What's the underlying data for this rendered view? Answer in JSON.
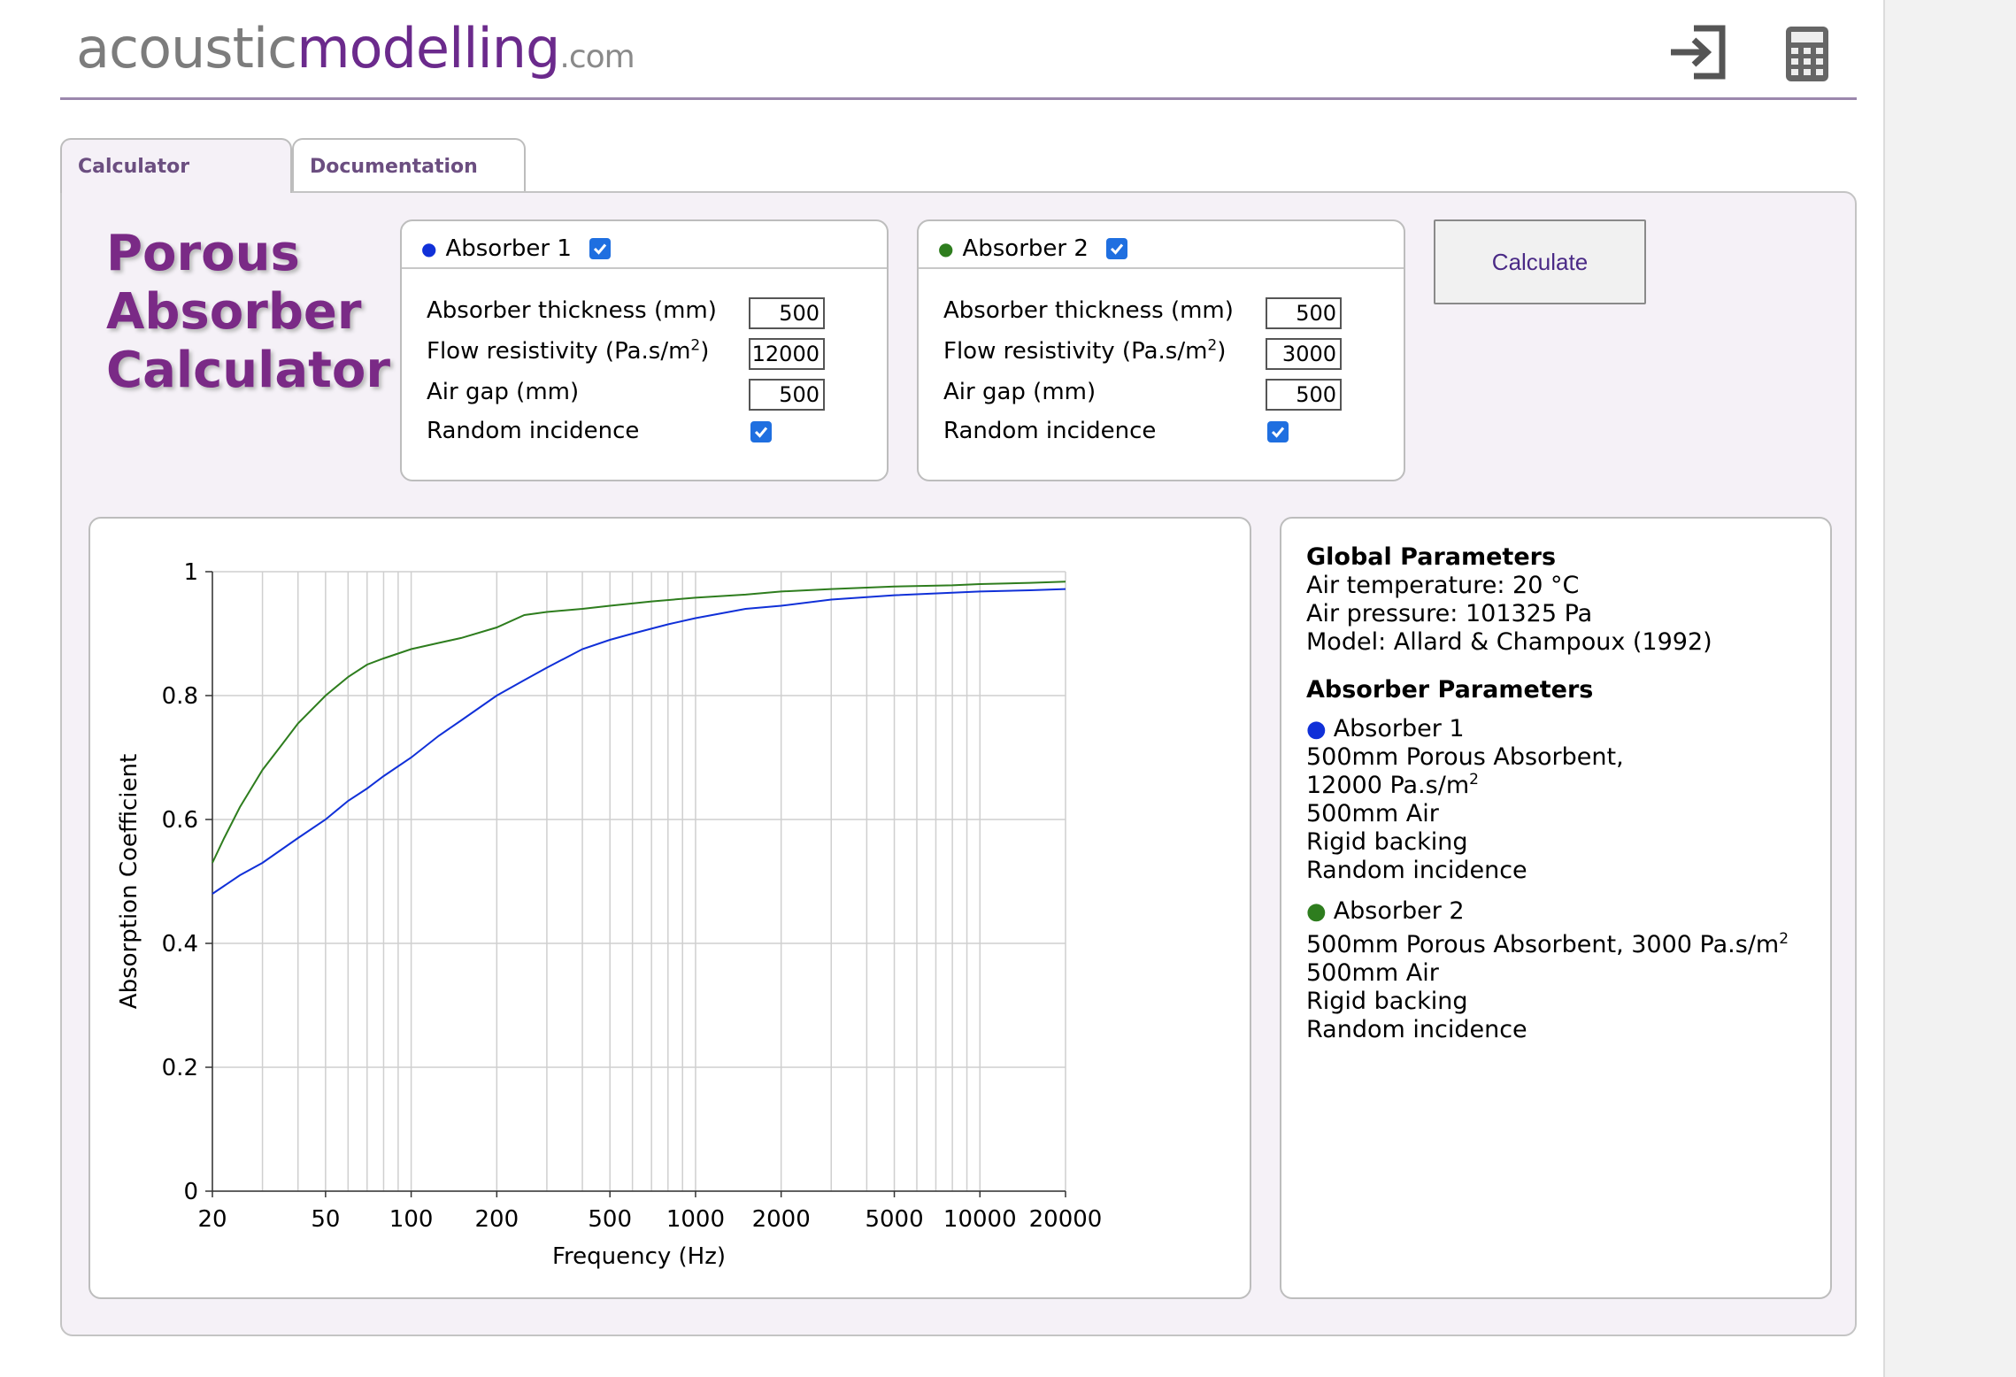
{
  "header": {
    "logo_part1": "acoustic",
    "logo_part2": "modelling",
    "logo_part3": ".com"
  },
  "tabs": [
    {
      "label": "Calculator",
      "active": true
    },
    {
      "label": "Documentation",
      "active": false
    }
  ],
  "title": {
    "line1": "Porous",
    "line2": "Absorber",
    "line3": "Calculator"
  },
  "absorber1": {
    "name": "Absorber 1",
    "color": "#1030d8",
    "enabled": true,
    "thickness_label": "Absorber thickness (mm)",
    "thickness": "500",
    "flow_label_prefix": "Flow resistivity (Pa.s/m",
    "flow_label_sup": "2",
    "flow_label_suffix": ")",
    "flow": "12000",
    "airgap_label": "Air gap (mm)",
    "airgap": "500",
    "random_label": "Random incidence",
    "random": true
  },
  "absorber2": {
    "name": "Absorber 2",
    "color": "#2e7d1e",
    "enabled": true,
    "thickness_label": "Absorber thickness (mm)",
    "thickness": "500",
    "flow_label_prefix": "Flow resistivity (Pa.s/m",
    "flow_label_sup": "2",
    "flow_label_suffix": ")",
    "flow": "3000",
    "airgap_label": "Air gap (mm)",
    "airgap": "500",
    "random_label": "Random incidence",
    "random": true
  },
  "calculate_label": "Calculate",
  "params": {
    "global_heading": "Global Parameters",
    "air_temp": "Air temperature: 20 °C",
    "air_pressure": "Air pressure: 101325 Pa",
    "model": "Model: Allard & Champoux (1992)",
    "absorber_heading": "Absorber Parameters",
    "abs1_name": "Absorber 1",
    "abs1_line1": "500mm Porous Absorbent,",
    "abs1_line2_prefix": "12000 Pa.s/m",
    "abs1_line2_sup": "2",
    "abs1_line3": "500mm Air",
    "abs1_line4": "Rigid backing",
    "abs1_line5": "Random incidence",
    "abs2_name": "Absorber 2",
    "abs2_line1_prefix": "500mm Porous Absorbent, 3000 Pa.s/m",
    "abs2_line1_sup": "2",
    "abs2_line2": "500mm Air",
    "abs2_line3": "Rigid backing",
    "abs2_line4": "Random incidence"
  },
  "chart_data": {
    "type": "line",
    "xlabel": "Frequency (Hz)",
    "ylabel": "Absorption Coefficient",
    "xscale": "log",
    "xlim": [
      20,
      20000
    ],
    "ylim": [
      0,
      1
    ],
    "x_ticks": [
      20,
      50,
      100,
      200,
      500,
      1000,
      2000,
      5000,
      10000,
      20000
    ],
    "x_tick_labels": [
      "20",
      "50",
      "100",
      "200",
      "500",
      "1000",
      "2000",
      "5000",
      "10000",
      "20000"
    ],
    "y_ticks": [
      0,
      0.2,
      0.4,
      0.6,
      0.8,
      1
    ],
    "y_tick_labels": [
      "0",
      "0.2",
      "0.4",
      "0.6",
      "0.8",
      "1"
    ],
    "grid": true,
    "series": [
      {
        "name": "Absorber 1",
        "color": "#1030d8",
        "x": [
          20,
          25,
          30,
          40,
          50,
          60,
          70,
          80,
          100,
          125,
          150,
          200,
          250,
          300,
          400,
          500,
          600,
          800,
          1000,
          1500,
          2000,
          3000,
          5000,
          8000,
          10000,
          15000,
          20000
        ],
        "y": [
          0.48,
          0.51,
          0.53,
          0.57,
          0.6,
          0.63,
          0.65,
          0.67,
          0.7,
          0.735,
          0.76,
          0.8,
          0.825,
          0.845,
          0.875,
          0.89,
          0.9,
          0.915,
          0.925,
          0.94,
          0.945,
          0.955,
          0.962,
          0.966,
          0.968,
          0.97,
          0.972
        ]
      },
      {
        "name": "Absorber 2",
        "color": "#2e7d1e",
        "x": [
          20,
          22,
          25,
          30,
          35,
          40,
          50,
          60,
          70,
          80,
          100,
          125,
          150,
          200,
          250,
          300,
          400,
          500,
          700,
          1000,
          1500,
          2000,
          3000,
          5000,
          8000,
          10000,
          15000,
          20000
        ],
        "y": [
          0.53,
          0.57,
          0.62,
          0.68,
          0.72,
          0.755,
          0.8,
          0.83,
          0.85,
          0.86,
          0.875,
          0.885,
          0.893,
          0.91,
          0.93,
          0.935,
          0.94,
          0.945,
          0.952,
          0.958,
          0.963,
          0.968,
          0.972,
          0.976,
          0.978,
          0.98,
          0.982,
          0.984
        ]
      }
    ]
  }
}
